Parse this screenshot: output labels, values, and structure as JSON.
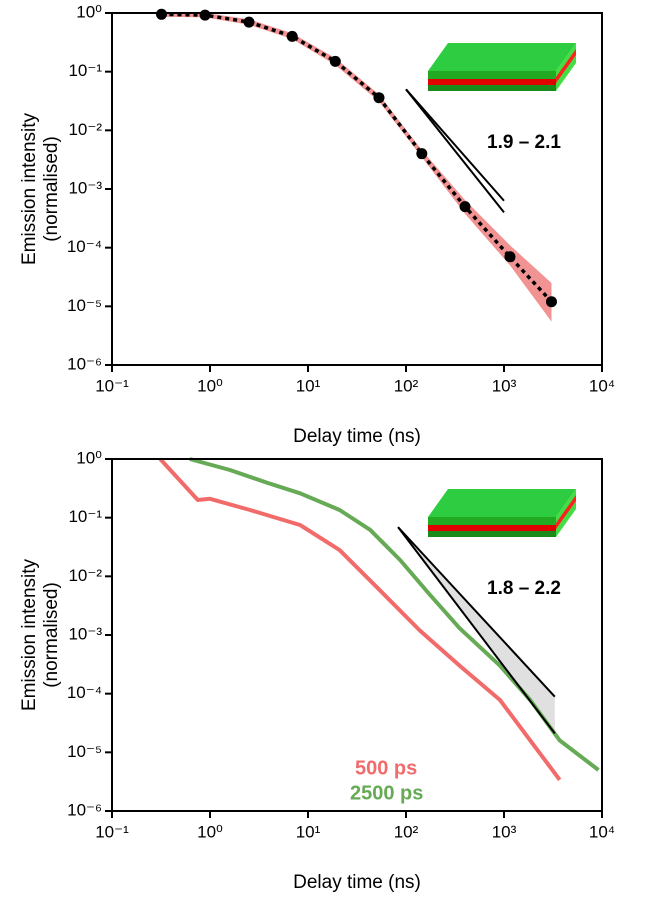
{
  "chart_data": [
    {
      "type": "line",
      "xlabel": "Delay time (ns)",
      "ylabel": [
        "Emission intensity",
        "(normalised)"
      ],
      "xscale": "log",
      "yscale": "log",
      "xlim": [
        0.1,
        10000
      ],
      "ylim": [
        1e-06,
        1
      ],
      "xticks": [
        {
          "value": 0.1,
          "label": "10⁻¹"
        },
        {
          "value": 1,
          "label": "10⁰"
        },
        {
          "value": 10,
          "label": "10¹"
        },
        {
          "value": 100,
          "label": "10²"
        },
        {
          "value": 1000,
          "label": "10³"
        },
        {
          "value": 10000,
          "label": "10⁴"
        }
      ],
      "yticks": [
        {
          "value": 1e-06,
          "label": "10⁻⁶"
        },
        {
          "value": 1e-05,
          "label": "10⁻⁵"
        },
        {
          "value": 0.0001,
          "label": "10⁻⁴"
        },
        {
          "value": 0.001,
          "label": "10⁻³"
        },
        {
          "value": 0.01,
          "label": "10⁻²"
        },
        {
          "value": 0.1,
          "label": "10⁻¹"
        },
        {
          "value": 1,
          "label": "10⁰"
        }
      ],
      "x": [
        0.32,
        0.89,
        2.5,
        6.9,
        19,
        53,
        145,
        400,
        1150,
        3050
      ],
      "series": [
        {
          "color": "#000000",
          "values": [
            0.95,
            0.92,
            0.7,
            0.4,
            0.15,
            0.036,
            0.004,
            0.0005,
            7e-05,
            1.2e-05
          ]
        }
      ],
      "band": {
        "color": "#f08080",
        "upper": [
          1.05,
          1.0,
          0.78,
          0.45,
          0.17,
          0.041,
          0.0046,
          0.00065,
          0.00011,
          2.5e-05
        ],
        "lower": [
          0.86,
          0.84,
          0.63,
          0.36,
          0.13,
          0.031,
          0.0035,
          0.00038,
          5e-05,
          5.5e-06
        ]
      },
      "guides": [
        {
          "x": [
            100,
            1000
          ],
          "y": [
            0.05,
            0.00063
          ]
        },
        {
          "x": [
            100,
            1000
          ],
          "y": [
            0.05,
            0.0004
          ]
        }
      ],
      "guide_fill": "none",
      "annotation": "1.9 – 2.1"
    },
    {
      "type": "line",
      "xlabel": "Delay time (ns)",
      "ylabel": [
        "Emission intensity",
        "(normalised)"
      ],
      "xscale": "log",
      "yscale": "log",
      "xlim": [
        0.1,
        10000
      ],
      "ylim": [
        1e-06,
        1
      ],
      "xticks": [
        {
          "value": 0.1,
          "label": "10⁻¹"
        },
        {
          "value": 1,
          "label": "10⁰"
        },
        {
          "value": 10,
          "label": "10¹"
        },
        {
          "value": 100,
          "label": "10²"
        },
        {
          "value": 1000,
          "label": "10³"
        },
        {
          "value": 10000,
          "label": "10⁴"
        }
      ],
      "yticks": [
        {
          "value": 1e-06,
          "label": "10⁻⁶"
        },
        {
          "value": 1e-05,
          "label": "10⁻⁵"
        },
        {
          "value": 0.0001,
          "label": "10⁻⁴"
        },
        {
          "value": 0.001,
          "label": "10⁻³"
        },
        {
          "value": 0.01,
          "label": "10⁻²"
        },
        {
          "value": 0.1,
          "label": "10⁻¹"
        },
        {
          "value": 1,
          "label": "10⁰"
        }
      ],
      "series": [
        {
          "name": "500 ps",
          "color": "#f26b6b",
          "x": [
            0.31,
            0.75,
            1,
            2.56,
            8.3,
            21,
            54,
            138,
            353,
            910,
            1850,
            3700
          ],
          "values": [
            1,
            0.2,
            0.21,
            0.135,
            0.075,
            0.028,
            0.0058,
            0.0012,
            0.0003,
            7.8e-05,
            1.6e-05,
            3.4e-06
          ]
        },
        {
          "name": "2500 ps",
          "color": "#66aa55",
          "x": [
            0.62,
            1.6,
            3.9,
            8.3,
            21,
            43,
            87,
            176,
            353,
            910,
            1850,
            3700,
            9200
          ],
          "values": [
            1,
            0.65,
            0.39,
            0.26,
            0.135,
            0.062,
            0.019,
            0.0048,
            0.0013,
            0.0003,
            7.8e-05,
            1.6e-05,
            5e-06
          ]
        }
      ],
      "guides": [
        {
          "x": [
            83,
            3300
          ],
          "y": [
            0.069,
            8.9e-05
          ]
        },
        {
          "x": [
            83,
            3300
          ],
          "y": [
            0.069,
            2.1e-05
          ]
        }
      ],
      "guide_fill": "#e0e0e0",
      "annotation": "1.8 – 2.2"
    }
  ]
}
